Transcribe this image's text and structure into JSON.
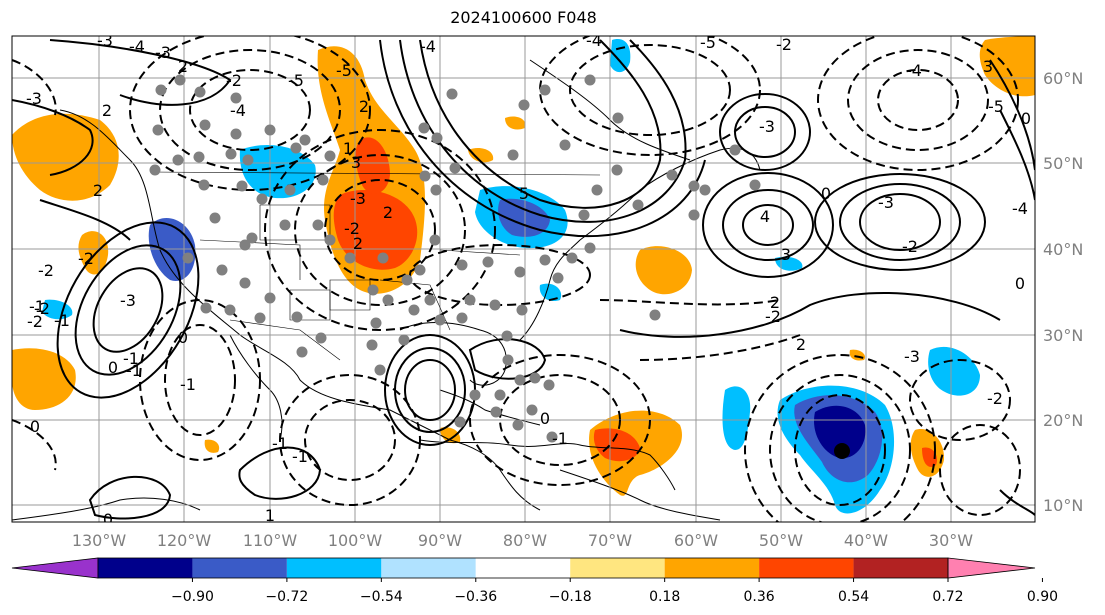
{
  "title": "2024100600 F048",
  "map": {
    "lon_labels": [
      "130°W",
      "120°W",
      "110°W",
      "100°W",
      "90°W",
      "80°W",
      "70°W",
      "60°W",
      "50°W",
      "40°W",
      "30°W"
    ],
    "lat_labels": [
      "60°N",
      "50°N",
      "40°N",
      "30°N",
      "20°N",
      "10°N"
    ],
    "contour_labels": [
      "-3",
      "-4",
      "-3",
      "2",
      "-3",
      "2",
      "2",
      "-4",
      "-5",
      "-2",
      "-5",
      "2",
      "1",
      "3",
      "-3",
      "2",
      "-2",
      "2",
      "-4",
      "5",
      "-4",
      "-5",
      "-2",
      "4",
      "-3",
      "-4",
      "0",
      "-3",
      "-2",
      "3",
      "-2",
      "2",
      "-3",
      "-2",
      "2",
      "0",
      "0",
      "3",
      "-5",
      "-4",
      "-1",
      "-2",
      "-1",
      "-3",
      "0",
      "-2",
      "-2",
      "-2",
      "-1",
      "0",
      "-1",
      "-1",
      "0",
      "0",
      "-1",
      "-1",
      "1",
      "-1",
      "0"
    ],
    "anomaly_colors": {
      "deep_blue": "#00008b",
      "blue": "#3a5bc7",
      "light_blue": "#00bfff",
      "orange": "#ffa500",
      "red_orange": "#ff4500",
      "dark_red": "#b22222"
    }
  },
  "colorbar": {
    "ticks": [
      "−0.90",
      "−0.72",
      "−0.54",
      "−0.36",
      "−0.18",
      "0.18",
      "0.36",
      "0.54",
      "0.72",
      "0.90"
    ],
    "colors": [
      "#9932cc",
      "#00008b",
      "#3a5bc7",
      "#00bfff",
      "#b0e2ff",
      "#ffffff",
      "#ffe680",
      "#ffa500",
      "#ff4500",
      "#b22222",
      "#ff80b0"
    ]
  }
}
